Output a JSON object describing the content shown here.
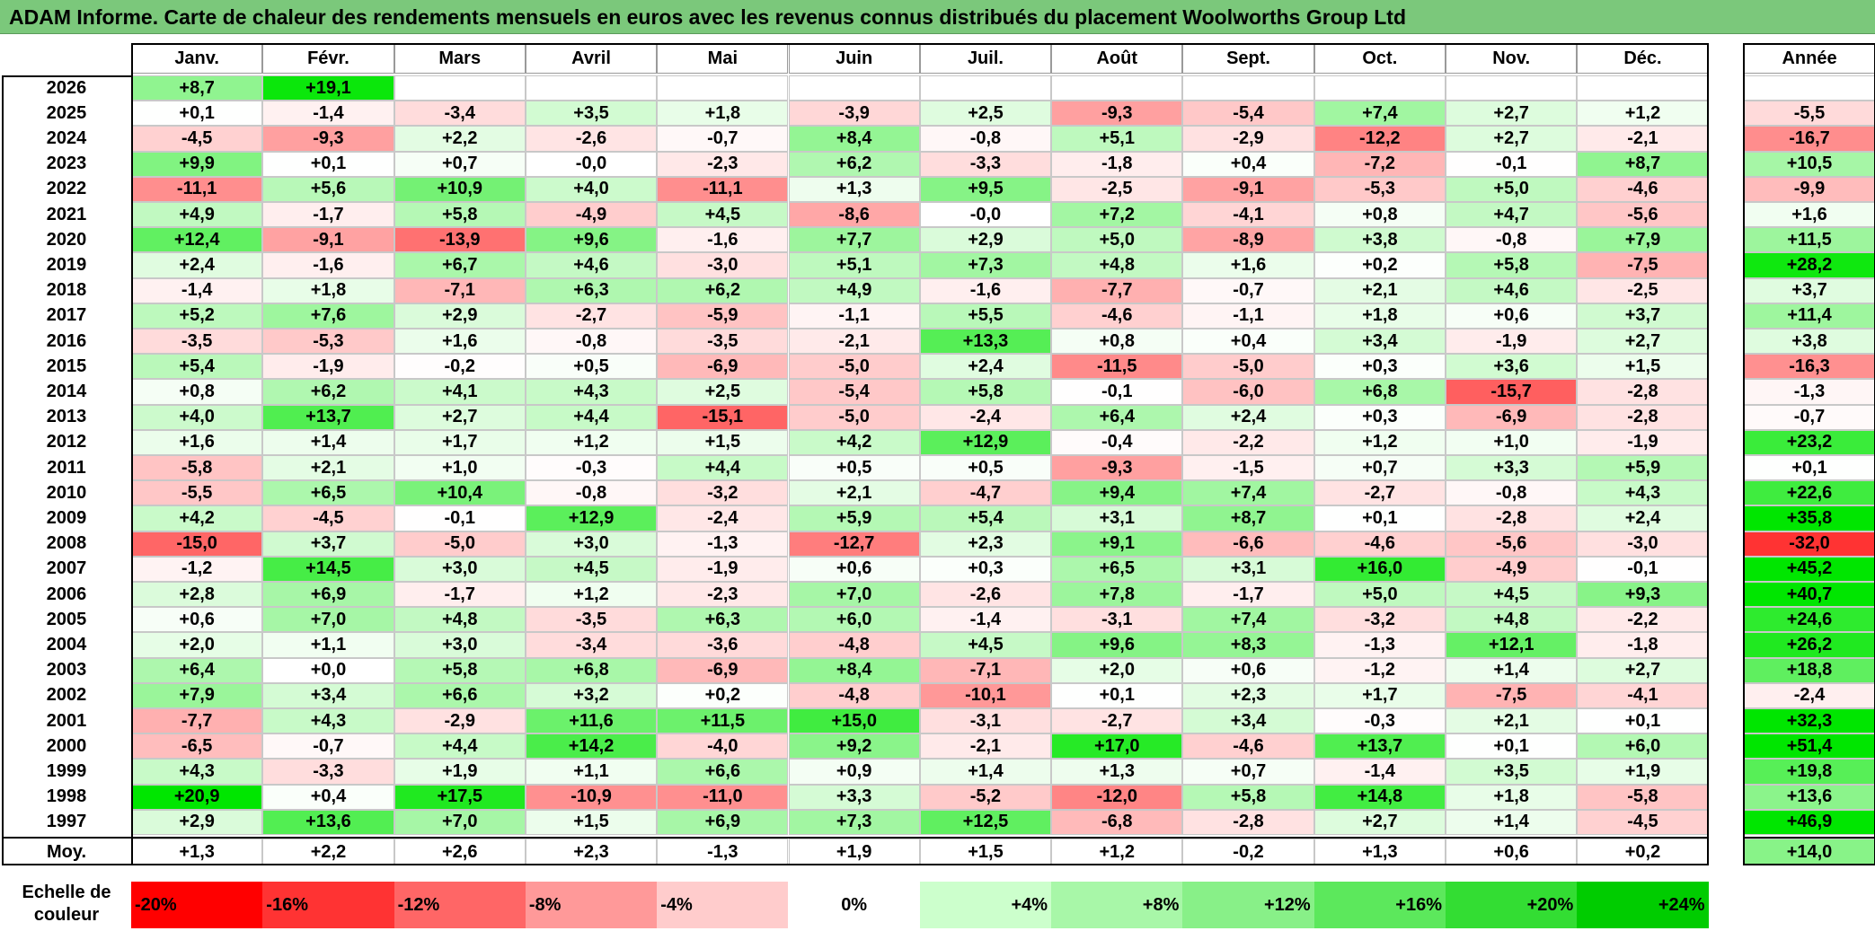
{
  "title": "ADAM Informe. Carte de chaleur des rendements mensuels en euros avec les revenus connus distribués du placement Woolworths Group Ltd",
  "scale_label": "Echelle de couleur",
  "chart_data": {
    "type": "heatmap",
    "title": "ADAM Informe. Carte de chaleur des rendements mensuels en euros avec les revenus connus distribués du placement Woolworths Group Ltd",
    "columns": [
      "Janv.",
      "Févr.",
      "Mars",
      "Avril",
      "Mai",
      "Juin",
      "Juil.",
      "Août",
      "Sept.",
      "Oct.",
      "Nov.",
      "Déc."
    ],
    "year_header": "Année",
    "rows": [
      {
        "year": "2026",
        "months": [
          "+8,7",
          "+19,1",
          "",
          "",
          "",
          "",
          "",
          "",
          "",
          "",
          "",
          ""
        ],
        "annual": ""
      },
      {
        "year": "2025",
        "months": [
          "+0,1",
          "-1,4",
          "-3,4",
          "+3,5",
          "+1,8",
          "-3,9",
          "+2,5",
          "-9,3",
          "-5,4",
          "+7,4",
          "+2,7",
          "+1,2"
        ],
        "annual": "-5,5"
      },
      {
        "year": "2024",
        "months": [
          "-4,5",
          "-9,3",
          "+2,2",
          "-2,6",
          "-0,7",
          "+8,4",
          "-0,8",
          "+5,1",
          "-2,9",
          "-12,2",
          "+2,7",
          "-2,1"
        ],
        "annual": "-16,7"
      },
      {
        "year": "2023",
        "months": [
          "+9,9",
          "+0,1",
          "+0,7",
          "-0,0",
          "-2,3",
          "+6,2",
          "-3,3",
          "-1,8",
          "+0,4",
          "-7,2",
          "-0,1",
          "+8,7"
        ],
        "annual": "+10,5"
      },
      {
        "year": "2022",
        "months": [
          "-11,1",
          "+5,6",
          "+10,9",
          "+4,0",
          "-11,1",
          "+1,3",
          "+9,5",
          "-2,5",
          "-9,1",
          "-5,3",
          "+5,0",
          "-4,6"
        ],
        "annual": "-9,9"
      },
      {
        "year": "2021",
        "months": [
          "+4,9",
          "-1,7",
          "+5,8",
          "-4,9",
          "+4,5",
          "-8,6",
          "-0,0",
          "+7,2",
          "-4,1",
          "+0,8",
          "+4,7",
          "-5,6"
        ],
        "annual": "+1,6"
      },
      {
        "year": "2020",
        "months": [
          "+12,4",
          "-9,1",
          "-13,9",
          "+9,6",
          "-1,6",
          "+7,7",
          "+2,9",
          "+5,0",
          "-8,9",
          "+3,8",
          "-0,8",
          "+7,9"
        ],
        "annual": "+11,5"
      },
      {
        "year": "2019",
        "months": [
          "+2,4",
          "-1,6",
          "+6,7",
          "+4,6",
          "-3,0",
          "+5,1",
          "+7,3",
          "+4,8",
          "+1,6",
          "+0,2",
          "+5,8",
          "-7,5"
        ],
        "annual": "+28,2"
      },
      {
        "year": "2018",
        "months": [
          "-1,4",
          "+1,8",
          "-7,1",
          "+6,3",
          "+6,2",
          "+4,9",
          "-1,6",
          "-7,7",
          "-0,7",
          "+2,1",
          "+4,6",
          "-2,5"
        ],
        "annual": "+3,7"
      },
      {
        "year": "2017",
        "months": [
          "+5,2",
          "+7,6",
          "+2,9",
          "-2,7",
          "-5,9",
          "-1,1",
          "+5,5",
          "-4,6",
          "-1,1",
          "+1,8",
          "+0,6",
          "+3,7"
        ],
        "annual": "+11,4"
      },
      {
        "year": "2016",
        "months": [
          "-3,5",
          "-5,3",
          "+1,6",
          "-0,8",
          "-3,5",
          "-2,1",
          "+13,3",
          "+0,8",
          "+0,4",
          "+3,4",
          "-1,9",
          "+2,7"
        ],
        "annual": "+3,8"
      },
      {
        "year": "2015",
        "months": [
          "+5,4",
          "-1,9",
          "-0,2",
          "+0,5",
          "-6,9",
          "-5,0",
          "+2,4",
          "-11,5",
          "-5,0",
          "+0,3",
          "+3,6",
          "+1,5"
        ],
        "annual": "-16,3"
      },
      {
        "year": "2014",
        "months": [
          "+0,8",
          "+6,2",
          "+4,1",
          "+4,3",
          "+2,5",
          "-5,4",
          "+5,8",
          "-0,1",
          "-6,0",
          "+6,8",
          "-15,7",
          "-2,8"
        ],
        "annual": "-1,3"
      },
      {
        "year": "2013",
        "months": [
          "+4,0",
          "+13,7",
          "+2,7",
          "+4,4",
          "-15,1",
          "-5,0",
          "-2,4",
          "+6,4",
          "+2,4",
          "+0,3",
          "-6,9",
          "-2,8"
        ],
        "annual": "-0,7"
      },
      {
        "year": "2012",
        "months": [
          "+1,6",
          "+1,4",
          "+1,7",
          "+1,2",
          "+1,5",
          "+4,2",
          "+12,9",
          "-0,4",
          "-2,2",
          "+1,2",
          "+1,0",
          "-1,9"
        ],
        "annual": "+23,2"
      },
      {
        "year": "2011",
        "months": [
          "-5,8",
          "+2,1",
          "+1,0",
          "-0,3",
          "+4,4",
          "+0,5",
          "+0,5",
          "-9,3",
          "-1,5",
          "+0,7",
          "+3,3",
          "+5,9"
        ],
        "annual": "+0,1"
      },
      {
        "year": "2010",
        "months": [
          "-5,5",
          "+6,5",
          "+10,4",
          "-0,8",
          "-3,2",
          "+2,1",
          "-4,7",
          "+9,4",
          "+7,4",
          "-2,7",
          "-0,8",
          "+4,3"
        ],
        "annual": "+22,6"
      },
      {
        "year": "2009",
        "months": [
          "+4,2",
          "-4,5",
          "-0,1",
          "+12,9",
          "-2,4",
          "+5,9",
          "+5,4",
          "+3,1",
          "+8,7",
          "+0,1",
          "-2,8",
          "+2,4"
        ],
        "annual": "+35,8"
      },
      {
        "year": "2008",
        "months": [
          "-15,0",
          "+3,7",
          "-5,0",
          "+3,0",
          "-1,3",
          "-12,7",
          "+2,3",
          "+9,1",
          "-6,6",
          "-4,6",
          "-5,6",
          "-3,0"
        ],
        "annual": "-32,0"
      },
      {
        "year": "2007",
        "months": [
          "-1,2",
          "+14,5",
          "+3,0",
          "+4,5",
          "-1,9",
          "+0,6",
          "+0,3",
          "+6,5",
          "+3,1",
          "+16,0",
          "-4,9",
          "-0,1"
        ],
        "annual": "+45,2"
      },
      {
        "year": "2006",
        "months": [
          "+2,8",
          "+6,9",
          "-1,7",
          "+1,2",
          "-2,3",
          "+7,0",
          "-2,6",
          "+7,8",
          "-1,7",
          "+5,0",
          "+4,5",
          "+9,3"
        ],
        "annual": "+40,7"
      },
      {
        "year": "2005",
        "months": [
          "+0,6",
          "+7,0",
          "+4,8",
          "-3,5",
          "+6,3",
          "+6,0",
          "-1,4",
          "-3,1",
          "+7,4",
          "-3,2",
          "+4,8",
          "-2,2"
        ],
        "annual": "+24,6"
      },
      {
        "year": "2004",
        "months": [
          "+2,0",
          "+1,1",
          "+3,0",
          "-3,4",
          "-3,6",
          "-4,8",
          "+4,5",
          "+9,6",
          "+8,3",
          "-1,3",
          "+12,1",
          "-1,8"
        ],
        "annual": "+26,2"
      },
      {
        "year": "2003",
        "months": [
          "+6,4",
          "+0,0",
          "+5,8",
          "+6,8",
          "-6,9",
          "+8,4",
          "-7,1",
          "+2,0",
          "+0,6",
          "-1,2",
          "+1,4",
          "+2,7"
        ],
        "annual": "+18,8"
      },
      {
        "year": "2002",
        "months": [
          "+7,9",
          "+3,4",
          "+6,6",
          "+3,2",
          "+0,2",
          "-4,8",
          "-10,1",
          "+0,1",
          "+2,3",
          "+1,7",
          "-7,5",
          "-4,1"
        ],
        "annual": "-2,4"
      },
      {
        "year": "2001",
        "months": [
          "-7,7",
          "+4,3",
          "-2,9",
          "+11,6",
          "+11,5",
          "+15,0",
          "-3,1",
          "-2,7",
          "+3,4",
          "-0,3",
          "+2,1",
          "+0,1"
        ],
        "annual": "+32,3"
      },
      {
        "year": "2000",
        "months": [
          "-6,5",
          "-0,7",
          "+4,4",
          "+14,2",
          "-4,0",
          "+9,2",
          "-2,1",
          "+17,0",
          "-4,6",
          "+13,7",
          "+0,1",
          "+6,0"
        ],
        "annual": "+51,4"
      },
      {
        "year": "1999",
        "months": [
          "+4,3",
          "-3,3",
          "+1,9",
          "+1,1",
          "+6,6",
          "+0,9",
          "+1,4",
          "+1,3",
          "+0,7",
          "-1,4",
          "+3,5",
          "+1,9"
        ],
        "annual": "+19,8"
      },
      {
        "year": "1998",
        "months": [
          "+20,9",
          "+0,4",
          "+17,5",
          "-10,9",
          "-11,0",
          "+3,3",
          "-5,2",
          "-12,0",
          "+5,8",
          "+14,8",
          "+1,8",
          "-5,8"
        ],
        "annual": "+13,6"
      },
      {
        "year": "1997",
        "months": [
          "+2,9",
          "+13,6",
          "+7,0",
          "+1,5",
          "+6,9",
          "+7,3",
          "+12,5",
          "-6,8",
          "-2,8",
          "+2,7",
          "+1,4",
          "-4,5"
        ],
        "annual": "+46,9"
      }
    ],
    "average": {
      "label": "Moy.",
      "months": [
        "+1,3",
        "+2,2",
        "+2,6",
        "+2,3",
        "-1,3",
        "+1,9",
        "+1,5",
        "+1,2",
        "-0,2",
        "+1,3",
        "+0,6",
        "+0,2"
      ],
      "annual": "+14,0"
    },
    "color_scale": {
      "labels": [
        "-20%",
        "-16%",
        "-12%",
        "-8%",
        "-4%",
        "0%",
        "+4%",
        "+8%",
        "+12%",
        "+16%",
        "+20%",
        "+24%"
      ],
      "values": [
        -20,
        -16,
        -12,
        -8,
        -4,
        0,
        4,
        8,
        12,
        16,
        20,
        24
      ],
      "colors": [
        "#ff0000",
        "#ff3333",
        "#ff6666",
        "#ff9999",
        "#ffcccc",
        "#ffffff",
        "#ccffcc",
        "#a8f7a8",
        "#88f088",
        "#5ce85c",
        "#33dd33",
        "#00cc00"
      ]
    }
  }
}
